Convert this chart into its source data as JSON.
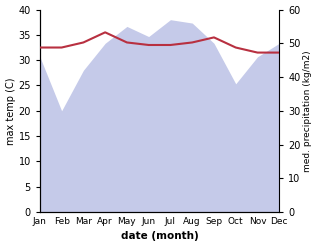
{
  "months": [
    "Jan",
    "Feb",
    "Mar",
    "Apr",
    "May",
    "Jun",
    "Jul",
    "Aug",
    "Sep",
    "Oct",
    "Nov",
    "Dec"
  ],
  "max_temp": [
    32.5,
    32.5,
    33.5,
    35.5,
    33.5,
    33.0,
    33.0,
    33.5,
    34.5,
    32.5,
    31.5,
    31.5
  ],
  "precipitation": [
    46,
    30,
    42,
    50,
    55,
    52,
    57,
    56,
    50,
    38,
    46,
    50
  ],
  "temp_color": "#b83040",
  "precip_fill_color": "#c5cae9",
  "background_color": "#ffffff",
  "ylabel_left": "max temp (C)",
  "ylabel_right": "med. precipitation (kg/m2)",
  "xlabel": "date (month)",
  "ylim_left": [
    0,
    40
  ],
  "ylim_right": [
    0,
    60
  ],
  "title": ""
}
